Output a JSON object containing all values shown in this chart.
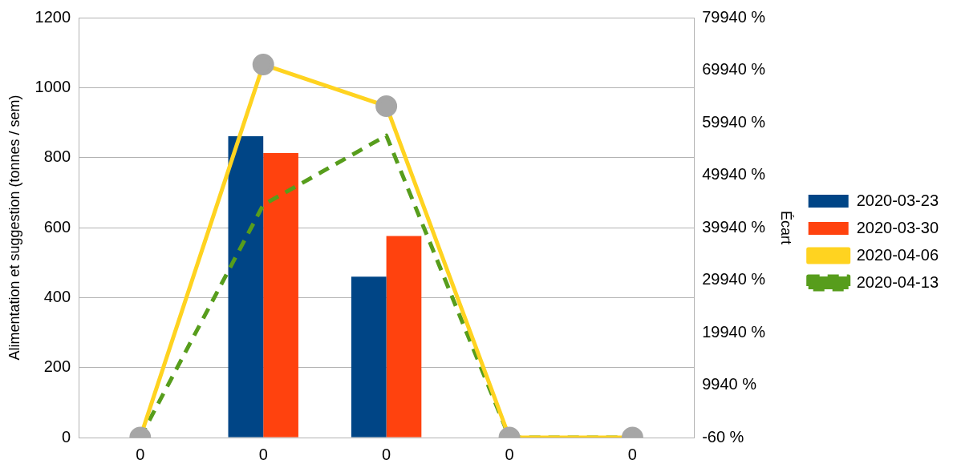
{
  "chart_data": {
    "type": "bar",
    "ylabel": "Alimentation et suggestion (tonnes / sem)",
    "y2label": "Écart",
    "categories": [
      "0",
      "0",
      "0",
      "0",
      "0"
    ],
    "series": [
      {
        "name": "2020-03-23",
        "color": "#004586",
        "values": [
          null,
          861,
          460,
          null,
          null
        ]
      },
      {
        "name": "2020-03-30",
        "color": "#ff420e",
        "values": [
          null,
          813,
          576,
          null,
          null
        ]
      },
      {
        "name": "2020-04-06",
        "type": "line",
        "color": "#ffd320",
        "marker": "circle",
        "line_style": "solid",
        "values": [
          0,
          1066,
          947,
          0,
          0
        ]
      },
      {
        "name": "2020-04-13",
        "type": "line",
        "color": "#579d1c",
        "marker": "none",
        "line_style": "dashed",
        "values": [
          0,
          665,
          863,
          0,
          0
        ]
      }
    ],
    "ylim": [
      0,
      1200
    ],
    "yticks": [
      0,
      200,
      400,
      600,
      800,
      1000,
      1200
    ],
    "y2lim": [
      -60,
      79940
    ],
    "y2ticks": [
      {
        "value": -60,
        "label": "-60 %"
      },
      {
        "value": 9940,
        "label": "9940 %"
      },
      {
        "value": 19940,
        "label": "19940 %"
      },
      {
        "value": 29940,
        "label": "29940 %"
      },
      {
        "value": 39940,
        "label": "39940 %"
      },
      {
        "value": 49940,
        "label": "49940 %"
      },
      {
        "value": 59940,
        "label": "59940 %"
      },
      {
        "value": 69940,
        "label": "69940 %"
      },
      {
        "value": 79940,
        "label": "79940 %"
      }
    ],
    "grid": "y",
    "legend": "right"
  }
}
